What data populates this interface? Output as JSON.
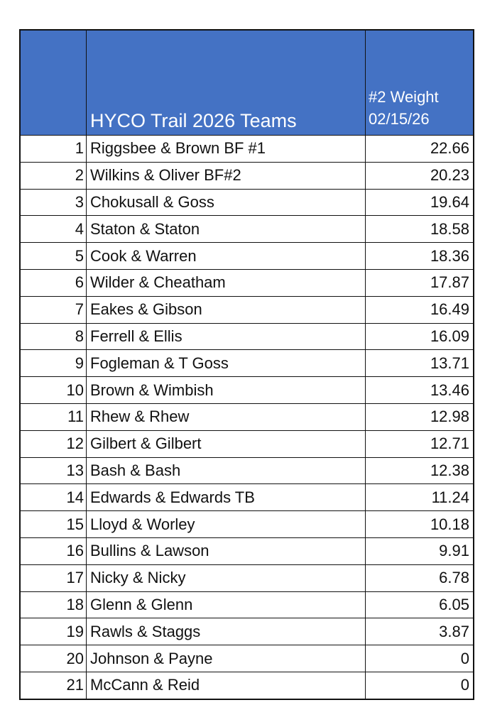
{
  "header": {
    "title": "HYCO Trail 2026 Teams",
    "weight_label": "#2 Weight",
    "weight_date": "02/15/26",
    "header_color": "#4472C4"
  },
  "rows": [
    {
      "rank": "1",
      "team": "Riggsbee & Brown BF #1",
      "weight": "22.66"
    },
    {
      "rank": "2",
      "team": "Wilkins & Oliver  BF#2",
      "weight": "20.23"
    },
    {
      "rank": "3",
      "team": "Chokusall & Goss",
      "weight": "19.64"
    },
    {
      "rank": "4",
      "team": "Staton & Staton",
      "weight": "18.58"
    },
    {
      "rank": "5",
      "team": "Cook & Warren",
      "weight": "18.36"
    },
    {
      "rank": "6",
      "team": "Wilder & Cheatham",
      "weight": "17.87"
    },
    {
      "rank": "7",
      "team": "Eakes & Gibson",
      "weight": "16.49"
    },
    {
      "rank": "8",
      "team": "Ferrell & Ellis",
      "weight": "16.09"
    },
    {
      "rank": "9",
      "team": "Fogleman & T Goss",
      "weight": "13.71"
    },
    {
      "rank": "10",
      "team": "Brown & Wimbish",
      "weight": "13.46"
    },
    {
      "rank": "11",
      "team": "Rhew & Rhew",
      "weight": "12.98"
    },
    {
      "rank": "12",
      "team": "Gilbert & Gilbert",
      "weight": "12.71"
    },
    {
      "rank": "13",
      "team": "Bash & Bash",
      "weight": "12.38"
    },
    {
      "rank": "14",
      "team": "Edwards & Edwards TB",
      "weight": "11.24"
    },
    {
      "rank": "15",
      "team": "Lloyd & Worley",
      "weight": "10.18"
    },
    {
      "rank": "16",
      "team": "Bullins & Lawson",
      "weight": "9.91"
    },
    {
      "rank": "17",
      "team": "Nicky & Nicky",
      "weight": "6.78"
    },
    {
      "rank": "18",
      "team": "Glenn & Glenn",
      "weight": "6.05"
    },
    {
      "rank": "19",
      "team": "Rawls & Staggs",
      "weight": "3.87"
    },
    {
      "rank": "20",
      "team": "Johnson & Payne",
      "weight": "0"
    },
    {
      "rank": "21",
      "team": "McCann & Reid",
      "weight": "0"
    }
  ]
}
